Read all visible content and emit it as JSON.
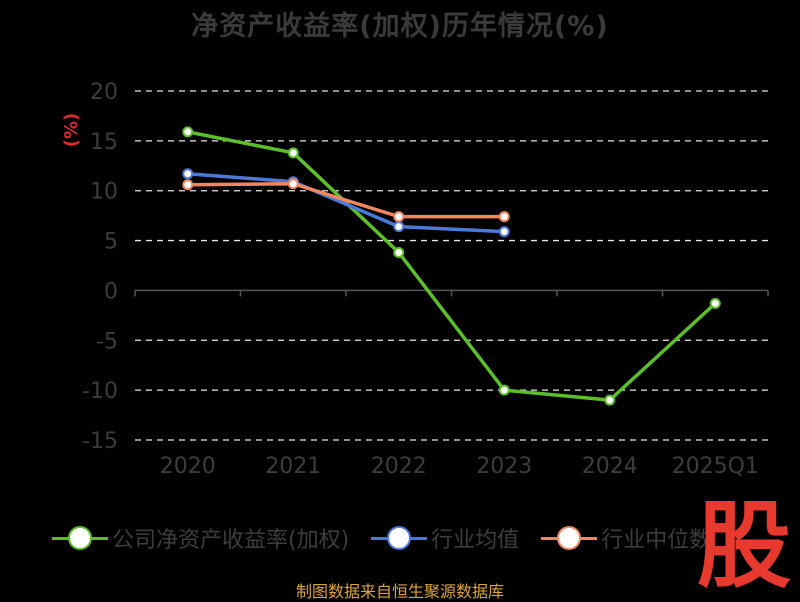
{
  "title": "净资产收益率(加权)历年情况(%)",
  "unit_label": "(%)",
  "source": "制图数据来自恒生聚源数据库",
  "watermark": "股",
  "chart_data": {
    "type": "line",
    "x": [
      "2020",
      "2021",
      "2022",
      "2023",
      "2024",
      "2025Q1"
    ],
    "ylim": [
      -15,
      20
    ],
    "yticks": [
      20,
      15,
      10,
      5,
      0,
      -5,
      -10,
      -15
    ],
    "grid": true,
    "legend_position": "bottom",
    "series": [
      {
        "name": "公司净资产收益率(加权)",
        "color": "#5cbf2a",
        "values": [
          15.9,
          13.8,
          3.8,
          -10.0,
          -11.0,
          -1.3
        ]
      },
      {
        "name": "行业均值",
        "color": "#4b79d9",
        "values": [
          11.7,
          10.9,
          6.4,
          5.9,
          null,
          null
        ]
      },
      {
        "name": "行业中位数",
        "color": "#f2875f",
        "values": [
          10.6,
          10.7,
          7.4,
          7.4,
          null,
          null
        ]
      }
    ]
  }
}
